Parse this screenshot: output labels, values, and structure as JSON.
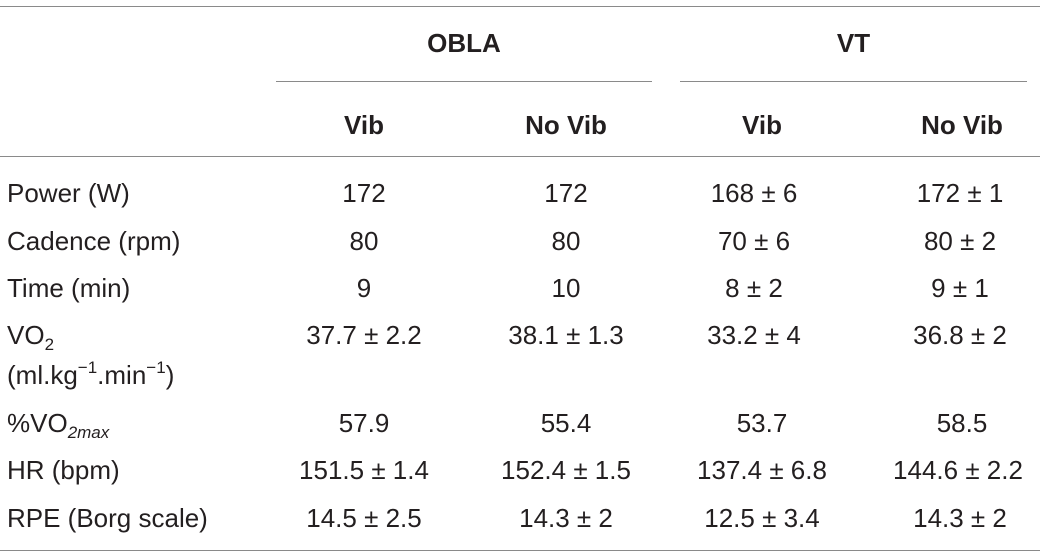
{
  "groups": [
    {
      "label": "OBLA",
      "sub": [
        "Vib",
        "No Vib"
      ]
    },
    {
      "label": "VT",
      "sub": [
        "Vib",
        "No Vib"
      ]
    }
  ],
  "rows": [
    {
      "label": "Power (W)",
      "values": [
        "172",
        "172",
        "168 ± 6",
        "172 ± 1"
      ]
    },
    {
      "label": "Cadence (rpm)",
      "values": [
        "80",
        "80",
        "70 ± 6",
        "80 ± 2"
      ]
    },
    {
      "label": "Time (min)",
      "values": [
        "9",
        "10",
        "8 ± 2",
        "9 ± 1"
      ]
    },
    {
      "label_main": "VO",
      "label_sub": "2",
      "label_unit": "(ml.kg",
      "label_exp1": "−1",
      "label_mid": ".min",
      "label_exp2": "−1",
      "label_close": ")",
      "values": [
        "37.7 ± 2.2",
        "38.1 ± 1.3",
        "33.2 ± 4",
        "36.8 ± 2"
      ]
    },
    {
      "label_main": "%VO",
      "label_sub": "2max",
      "values": [
        "57.9",
        "55.4",
        "53.7",
        "58.5"
      ]
    },
    {
      "label": "HR (bpm)",
      "values": [
        "151.5 ± 1.4",
        "152.4 ± 1.5",
        "137.4 ± 6.8",
        "144.6 ± 2.2"
      ]
    },
    {
      "label": "RPE (Borg scale)",
      "values": [
        "14.5 ± 2.5",
        "14.3 ± 2",
        "12.5 ± 3.4",
        "14.3 ± 2"
      ]
    }
  ]
}
